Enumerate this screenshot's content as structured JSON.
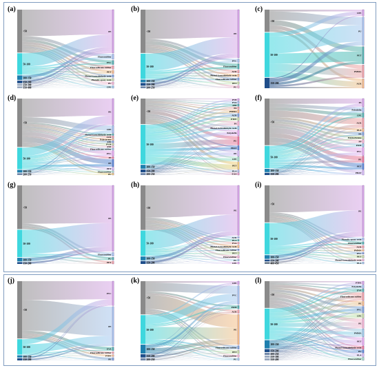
{
  "colors": {
    "lt50": "#8a8a8a",
    "s50_100": "#3fd7de",
    "s100_150": "#1e7fae",
    "s150_200": "#1f4e8a",
    "s200_250": "#6f86a8",
    "s250_300": "#9aa9bf",
    "s400_450": "#6b7a8a"
  },
  "chart_data": [
    {
      "type": "sankey",
      "label": "(a)",
      "sources": [
        "<50",
        "50-100",
        "100-150",
        "150-200",
        "250-300",
        "350-400"
      ],
      "source_weights": [
        48,
        24,
        5,
        3,
        2,
        2
      ],
      "targets": [
        "PE",
        "Fluororubber",
        "PVC",
        "Fluorosilicone rubber",
        "PET",
        "Phenol-formaldehyde resin",
        "Phenolic epoxy resin",
        "PU",
        "CPE"
      ],
      "target_weights": [
        50,
        6,
        5,
        4,
        4,
        3,
        3,
        3,
        3
      ]
    },
    {
      "type": "sankey",
      "label": "(b)",
      "sources": [
        "<50",
        "50-100",
        "100-150",
        "150-200",
        "200-250"
      ],
      "source_weights": [
        48,
        28,
        3,
        3,
        2
      ],
      "targets": [
        "PE",
        "PVC",
        "Fluororubber",
        "ACR",
        "Phenol-formaldehyde resin",
        "Fluorosilicone rubber",
        "PET",
        "PU"
      ],
      "target_weights": [
        52,
        4,
        6,
        3,
        3,
        3,
        3,
        3
      ]
    },
    {
      "type": "sankey",
      "label": "(c)",
      "sources": [
        "<50",
        "50-100",
        "150-200"
      ],
      "source_weights": [
        30,
        60,
        14
      ],
      "targets": [
        "CPE",
        "PU",
        "PET",
        "PMMA",
        "ACR"
      ],
      "target_weights": [
        8,
        36,
        22,
        16,
        12
      ]
    },
    {
      "type": "sankey",
      "label": "(d)",
      "sources": [
        "<50",
        "50-100",
        "100-150",
        "200-250"
      ],
      "source_weights": [
        54,
        24,
        3,
        2
      ],
      "targets": [
        "PE",
        "CPE",
        "Phenol-formaldehyde resin",
        "ACR",
        "Polystyrene",
        "ABS",
        "PVM",
        "ASR",
        "Fluorosilicone rubber",
        "PVC",
        "PS",
        "PE",
        "PET",
        "Fluororubber",
        "PU"
      ],
      "target_weights": [
        28,
        8,
        2,
        2,
        2,
        2,
        2,
        2,
        2,
        6,
        2,
        8,
        3,
        2,
        2
      ]
    },
    {
      "type": "sankey",
      "label": "(e)",
      "sources": [
        "<50",
        "50-100",
        "100-150",
        "150-200",
        "200-250"
      ],
      "source_weights": [
        26,
        40,
        4,
        3,
        2
      ],
      "targets": [
        "PVB",
        "EVA",
        "ABS",
        "PA",
        "PMMA",
        "ACR",
        "PTFE",
        "PS",
        "Phenol-formaldehyde resin",
        "Polyolefin",
        "PU",
        "PBAT",
        "PE",
        "CPE",
        "PET",
        "PLA",
        "EAA"
      ],
      "target_weights": [
        2,
        2,
        2,
        2,
        3,
        3,
        3,
        4,
        3,
        5,
        8,
        4,
        5,
        4,
        7,
        2,
        2
      ]
    },
    {
      "type": "sankey",
      "label": "(f)",
      "sources": [
        "<50",
        "50-100",
        "100-150",
        "150-200"
      ],
      "source_weights": [
        42,
        20,
        3,
        2
      ],
      "targets": [
        "PS",
        "Polyolefin",
        "CPE",
        "ACR",
        "PLA",
        "PA",
        "Polyisobutene",
        "PP",
        "POM",
        "PVC",
        "PE",
        "PET",
        "PBAT"
      ],
      "target_weights": [
        5,
        3,
        3,
        6,
        2,
        2,
        2,
        2,
        2,
        5,
        4,
        4,
        3
      ]
    },
    {
      "type": "sankey",
      "label": "(g)",
      "sources": [
        "<50",
        "50-100",
        "100-150",
        "150-200"
      ],
      "source_weights": [
        48,
        30,
        4,
        2
      ],
      "targets": [
        "PE",
        "Fluororubber",
        "PU",
        "PET"
      ],
      "target_weights": [
        70,
        4,
        3,
        3
      ]
    },
    {
      "type": "sankey",
      "label": "(h)",
      "sources": [
        "<50",
        "50-100",
        "100-150",
        "150-200"
      ],
      "source_weights": [
        46,
        26,
        4,
        3
      ],
      "targets": [
        "PE",
        "ACR",
        "PLA",
        "EVA",
        "Phenol-formaldehyde resin",
        "Fluorosilicone rubber",
        "PET",
        "Fluororubber",
        "PU",
        "CPE"
      ],
      "target_weights": [
        55,
        2,
        2,
        2,
        3,
        2,
        3,
        3,
        2,
        2
      ]
    },
    {
      "type": "sankey",
      "label": "(i)",
      "sources": [
        "<50",
        "50-100",
        "100-150",
        "150-200",
        "400-450"
      ],
      "source_weights": [
        40,
        34,
        4,
        2,
        2
      ],
      "targets": [
        "PE",
        "Phenolic epoxy resin",
        "Fluororubber",
        "ACR",
        "PMMA",
        "PVC",
        "PET",
        "Phenol-formaldehyde resin",
        "PLA"
      ],
      "target_weights": [
        54,
        3,
        3,
        3,
        2,
        2,
        3,
        2,
        2
      ]
    },
    {
      "type": "sankey",
      "label": "(j)",
      "sources": [
        "<50",
        "50-100",
        "100-150",
        "150-200"
      ],
      "source_weights": [
        52,
        14,
        2,
        2
      ],
      "targets": [
        "PVC",
        "PE",
        "EVA",
        "Fluorosilicone rubber",
        "PTFE",
        "PE"
      ],
      "target_weights": [
        26,
        42,
        4,
        2,
        2,
        3
      ]
    },
    {
      "type": "sankey",
      "label": "(k)",
      "sources": [
        "<50",
        "50-100",
        "100-150",
        "150-200",
        "200-250"
      ],
      "source_weights": [
        30,
        26,
        8,
        3,
        2
      ],
      "targets": [
        "CPE",
        "PVC",
        "POM",
        "ACR",
        "PE",
        "Fluorosilicone rubber",
        "PET",
        "Fluororubber",
        "PU"
      ],
      "target_weights": [
        3,
        16,
        3,
        3,
        26,
        3,
        3,
        2,
        2
      ]
    },
    {
      "type": "sankey",
      "label": "(l)",
      "sources": [
        "<50",
        "50-100",
        "100-150",
        "150-200",
        "200-250",
        "250-300",
        "350-400"
      ],
      "source_weights": [
        26,
        30,
        8,
        3,
        2,
        2,
        2
      ],
      "targets": [
        "PTFE",
        "Polyolefin",
        "EVA",
        "Fluorosilicone rubber",
        "PE",
        "PVC",
        "CPE",
        "PE",
        "PMMA",
        "PET",
        "Phenol-formaldehyde resin",
        "PU",
        "PLA",
        "Fluororubber"
      ],
      "target_weights": [
        2,
        2,
        2,
        5,
        3,
        4,
        3,
        6,
        5,
        5,
        2,
        2,
        2,
        2
      ]
    }
  ]
}
